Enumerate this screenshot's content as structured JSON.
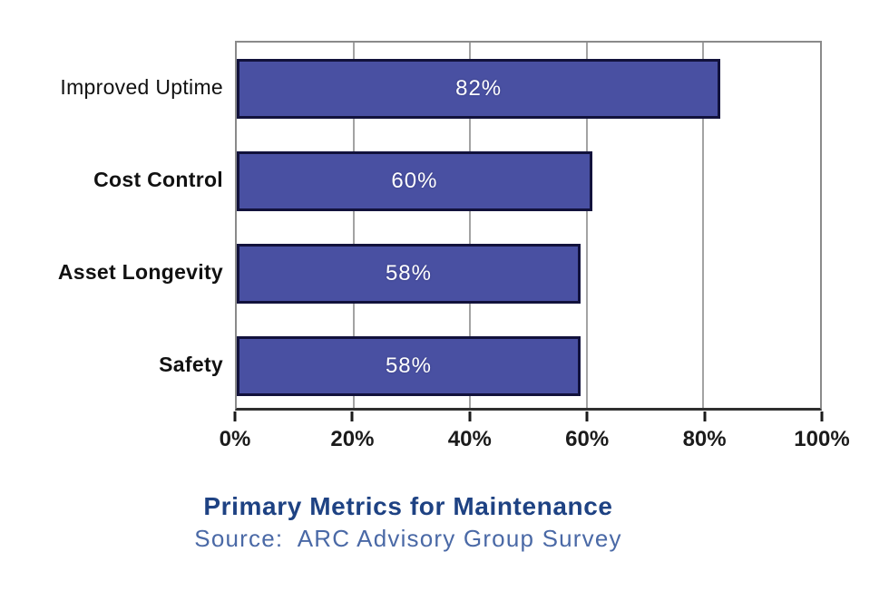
{
  "chart_data": {
    "type": "bar",
    "orientation": "horizontal",
    "title": "Primary Metrics for Maintenance",
    "source": "Source:  ARC Advisory Group Survey",
    "categories": [
      "Improved Uptime",
      "Cost Control",
      "Asset Longevity",
      "Safety"
    ],
    "values": [
      82,
      60,
      58,
      58
    ],
    "value_labels": [
      "82%",
      "60%",
      "58%",
      "58%"
    ],
    "xlim": [
      0,
      100
    ],
    "x_tick_positions": [
      0,
      20,
      40,
      60,
      80,
      100
    ],
    "x_tick_labels": [
      "0%",
      "20%",
      "40%",
      "60%",
      "80%",
      "100%"
    ],
    "gridline_positions": [
      20,
      40,
      60,
      80
    ],
    "grid": "vertical",
    "legend": "none",
    "colors": {
      "bar_fill": "#4950a2",
      "bar_border": "#12123c",
      "plot_frame": "#8a8a8a",
      "axis_line": "#2f2f2f",
      "gridline": "#a3a3a3",
      "value_text": "#ffffff",
      "category_text": "#111111",
      "tick_text": "#1b1b1b",
      "title_text": "#1e4283",
      "source_text": "#4a69a6"
    }
  }
}
